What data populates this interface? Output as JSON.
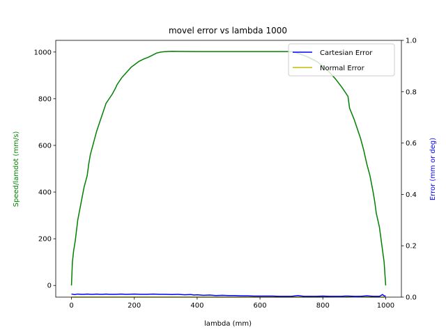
{
  "chart_data": {
    "type": "line",
    "title": "movel error vs lambda 1000",
    "xlabel": "lambda (mm)",
    "ylabel": "Speed/lamdot (mm/s)",
    "ylabel_right": "Error (mm or deg)",
    "xlim": [
      -50,
      1050
    ],
    "ylim": [
      -50,
      1050
    ],
    "ylim_right": [
      0,
      1
    ],
    "x_ticks": [
      0,
      200,
      400,
      600,
      800,
      1000
    ],
    "y_ticks": [
      0,
      200,
      400,
      600,
      800,
      1000
    ],
    "y_ticks_right": [
      0.0,
      0.2,
      0.4,
      0.6,
      0.8,
      1.0
    ],
    "legend_position": "top-right",
    "grid": false,
    "colors": {
      "speed": "#008000",
      "cartesian": "#0000ff",
      "normal": "#bfbf00"
    },
    "speed": {
      "axis": "left",
      "x": [
        0,
        3,
        7,
        12,
        20,
        30,
        40,
        50,
        55,
        60,
        70,
        80,
        90,
        100,
        110,
        120,
        130,
        140,
        145,
        150,
        160,
        170,
        180,
        190,
        200,
        215,
        230,
        245,
        260,
        270,
        285,
        300,
        320,
        400,
        500,
        600,
        700,
        720,
        750,
        780,
        800,
        820,
        840,
        860,
        880,
        885,
        900,
        910,
        920,
        930,
        940,
        950,
        960,
        965,
        970,
        980,
        990,
        995,
        1000
      ],
      "y": [
        0,
        100,
        150,
        190,
        280,
        350,
        420,
        470,
        520,
        560,
        610,
        660,
        700,
        740,
        780,
        800,
        820,
        845,
        860,
        870,
        890,
        905,
        920,
        935,
        945,
        960,
        970,
        978,
        988,
        995,
        1000,
        1002,
        1003,
        1002,
        1002,
        1002,
        1002,
        995,
        980,
        960,
        940,
        915,
        885,
        850,
        810,
        760,
        710,
        670,
        630,
        580,
        520,
        470,
        400,
        360,
        310,
        250,
        150,
        100,
        0
      ]
    },
    "series": [
      {
        "name": "Cartesian Error",
        "axis": "right",
        "x": [
          0,
          10,
          20,
          30,
          40,
          50,
          60,
          70,
          80,
          90,
          100,
          110,
          120,
          140,
          160,
          170,
          180,
          200,
          220,
          240,
          260,
          280,
          300,
          320,
          340,
          360,
          380,
          390,
          400,
          420,
          440,
          460,
          480,
          500,
          520,
          540,
          560,
          580,
          600,
          620,
          640,
          660,
          680,
          700,
          720,
          740,
          760,
          780,
          800,
          820,
          840,
          860,
          870,
          880,
          900,
          920,
          940,
          960,
          980,
          990,
          995,
          1000
        ],
        "y": [
          0.012,
          0.01,
          0.012,
          0.011,
          0.011,
          0.012,
          0.011,
          0.011,
          0.012,
          0.011,
          0.011,
          0.012,
          0.011,
          0.011,
          0.012,
          0.011,
          0.011,
          0.012,
          0.011,
          0.011,
          0.012,
          0.011,
          0.011,
          0.01,
          0.011,
          0.009,
          0.01,
          0.008,
          0.009,
          0.007,
          0.008,
          0.006,
          0.007,
          0.006,
          0.006,
          0.005,
          0.005,
          0.004,
          0.004,
          0.004,
          0.004,
          0.003,
          0.003,
          0.003,
          0.006,
          0.003,
          0.003,
          0.003,
          0.004,
          0.003,
          0.003,
          0.003,
          0.004,
          0.004,
          0.003,
          0.003,
          0.005,
          0.003,
          0.003,
          0.01,
          0.005,
          0.004
        ]
      },
      {
        "name": "Normal Error",
        "axis": "right",
        "x": [
          0,
          100,
          200,
          300,
          400,
          500,
          600,
          650,
          700,
          750,
          800,
          850,
          880,
          900,
          920,
          940,
          960,
          980,
          1000
        ],
        "y": [
          0.0,
          0.0,
          0.0,
          0.0,
          0.0,
          0.0,
          0.0,
          0.0,
          0.0,
          0.0,
          0.0,
          0.001,
          0.0,
          0.002,
          0.001,
          0.0,
          0.0,
          0.0,
          0.0
        ]
      }
    ]
  }
}
